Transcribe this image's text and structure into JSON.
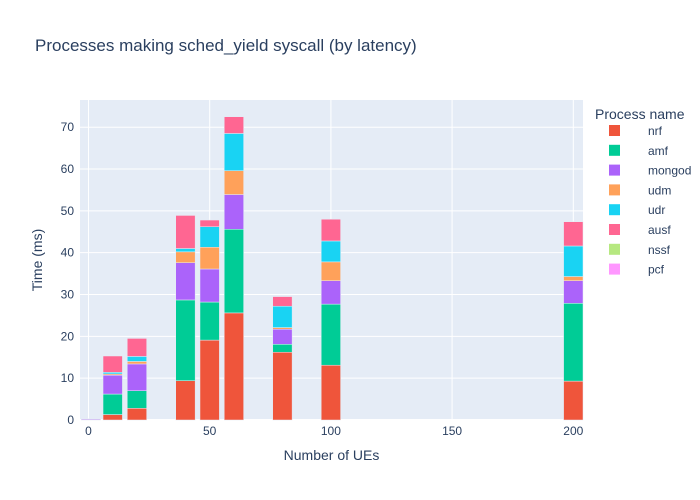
{
  "chart_data": {
    "type": "bar",
    "mode": "stacked",
    "title": "Processes making sched_yield syscall (by latency)",
    "xlabel": "Number of UEs",
    "ylabel": "Time (ms)",
    "legend_title": "Process name",
    "legend_position": "right",
    "grid": true,
    "x": [
      1,
      10,
      20,
      40,
      50,
      60,
      80,
      100,
      200
    ],
    "xlim": [
      -3.5,
      204
    ],
    "ylim": [
      0,
      76.5
    ],
    "bar_width": 8,
    "x_ticks": [
      0,
      50,
      100,
      150,
      200
    ],
    "x_tick_labels": [
      "0",
      "50",
      "100",
      "150",
      "200"
    ],
    "y_ticks": [
      0,
      10,
      20,
      30,
      40,
      50,
      60,
      70
    ],
    "y_tick_labels": [
      "0",
      "10",
      "20",
      "30",
      "40",
      "50",
      "60",
      "70"
    ],
    "series": [
      {
        "name": "nrf",
        "color": "#EF553B",
        "values": [
          0.0,
          1.3,
          2.8,
          9.4,
          19.1,
          25.6,
          16.2,
          13.1,
          9.3
        ]
      },
      {
        "name": "amf",
        "color": "#00CC96",
        "values": [
          0.0,
          4.9,
          4.2,
          19.3,
          9.1,
          20.0,
          1.9,
          14.6,
          18.6
        ]
      },
      {
        "name": "mongod",
        "color": "#AB63FA",
        "values": [
          0.2,
          4.5,
          6.4,
          8.9,
          7.9,
          8.3,
          3.6,
          5.6,
          5.4
        ]
      },
      {
        "name": "udm",
        "color": "#FFA15A",
        "values": [
          0.0,
          0.3,
          0.6,
          2.6,
          5.2,
          5.7,
          0.4,
          4.5,
          1.0
        ]
      },
      {
        "name": "udr",
        "color": "#19D3F3",
        "values": [
          0.0,
          0.4,
          1.2,
          0.8,
          4.9,
          8.9,
          5.1,
          5.0,
          7.3
        ]
      },
      {
        "name": "ausf",
        "color": "#FF6692",
        "values": [
          0.1,
          3.9,
          4.3,
          7.9,
          1.6,
          4.0,
          2.3,
          5.2,
          5.8
        ]
      },
      {
        "name": "nssf",
        "color": "#B6E880",
        "values": [
          0.0,
          0.0,
          0.0,
          0.0,
          0.0,
          0.0,
          0.0,
          0.0,
          0.0
        ]
      },
      {
        "name": "pcf",
        "color": "#FF97FF",
        "values": [
          0.0,
          0.0,
          0.0,
          0.0,
          0.0,
          0.0,
          0.0,
          0.0,
          0.0
        ]
      }
    ]
  }
}
